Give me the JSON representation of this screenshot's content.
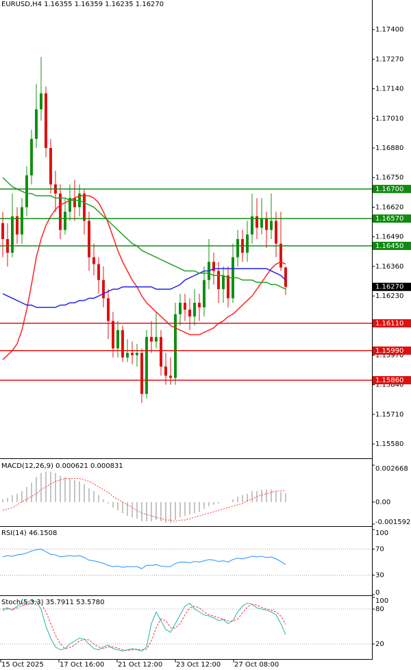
{
  "chart_data": [
    {
      "type": "candlestick",
      "title": "EURUSD,H4  1.16355 1.16359 1.16235 1.16270",
      "up_color": "#109010",
      "down_color": "#e01010",
      "ylim": [
        1.1552,
        1.1753
      ],
      "yticks": [
        {
          "value": 1.174,
          "label": "1.17400"
        },
        {
          "value": 1.1727,
          "label": "1.17270"
        },
        {
          "value": 1.1714,
          "label": "1.17140"
        },
        {
          "value": 1.1701,
          "label": "1.17010"
        },
        {
          "value": 1.1688,
          "label": "1.16880"
        },
        {
          "value": 1.1675,
          "label": "1.16750"
        },
        {
          "value": 1.1662,
          "label": "1.16620"
        },
        {
          "value": 1.1649,
          "label": "1.16490"
        },
        {
          "value": 1.1636,
          "label": "1.16360"
        },
        {
          "value": 1.1623,
          "label": "1.16230"
        },
        {
          "value": 1.161,
          "label": "1.16100"
        },
        {
          "value": 1.1597,
          "label": "1.15970"
        },
        {
          "value": 1.1584,
          "label": "1.15840"
        },
        {
          "value": 1.1571,
          "label": "1.15710"
        },
        {
          "value": 1.1558,
          "label": "1.15580"
        }
      ],
      "open": [
        1.1655,
        1.1648,
        1.1642,
        1.1658,
        1.165,
        1.1662,
        1.1676,
        1.1692,
        1.1705,
        1.1712,
        1.1688,
        1.1672,
        1.1668,
        1.1652,
        1.166,
        1.1666,
        1.1662,
        1.1668,
        1.1656,
        1.164,
        1.1637,
        1.163,
        1.1622,
        1.1612,
        1.16,
        1.1608,
        1.1596,
        1.1598,
        1.1597,
        1.1598,
        1.158,
        1.1605,
        1.1603,
        1.1605,
        1.1592,
        1.1588,
        1.1587,
        1.1615,
        1.162,
        1.1617,
        1.1614,
        1.162,
        1.1618,
        1.163,
        1.1638,
        1.1634,
        1.1626,
        1.1632,
        1.1622,
        1.164,
        1.1648,
        1.1642,
        1.165,
        1.1658,
        1.1653,
        1.1657,
        1.1652,
        1.1656,
        1.1646,
        1.16355
      ],
      "high": [
        1.166,
        1.1655,
        1.1668,
        1.1662,
        1.1666,
        1.168,
        1.1696,
        1.1716,
        1.1728,
        1.1715,
        1.1692,
        1.1678,
        1.1672,
        1.1666,
        1.1672,
        1.1674,
        1.1672,
        1.167,
        1.166,
        1.1646,
        1.164,
        1.1636,
        1.1626,
        1.1616,
        1.1612,
        1.161,
        1.1604,
        1.1603,
        1.1602,
        1.16,
        1.1608,
        1.1612,
        1.1616,
        1.1608,
        1.1598,
        1.1596,
        1.162,
        1.1624,
        1.1624,
        1.1622,
        1.1626,
        1.1624,
        1.1636,
        1.1648,
        1.1642,
        1.1638,
        1.1636,
        1.1636,
        1.1646,
        1.1652,
        1.1652,
        1.1656,
        1.1668,
        1.1666,
        1.1666,
        1.166,
        1.1668,
        1.166,
        1.166,
        1.16359
      ],
      "low": [
        1.164,
        1.1636,
        1.164,
        1.1646,
        1.1646,
        1.1658,
        1.1672,
        1.1688,
        1.17,
        1.1684,
        1.1668,
        1.166,
        1.1648,
        1.165,
        1.1656,
        1.1656,
        1.1658,
        1.165,
        1.1634,
        1.1632,
        1.1624,
        1.1618,
        1.1604,
        1.1596,
        1.1596,
        1.1594,
        1.1594,
        1.1593,
        1.1592,
        1.1576,
        1.1578,
        1.1598,
        1.16,
        1.1588,
        1.1584,
        1.1584,
        1.1584,
        1.161,
        1.1612,
        1.1608,
        1.161,
        1.1612,
        1.1614,
        1.1626,
        1.1628,
        1.162,
        1.162,
        1.1618,
        1.162,
        1.1636,
        1.1638,
        1.1638,
        1.1646,
        1.1648,
        1.165,
        1.1644,
        1.1648,
        1.164,
        1.1634,
        1.16235
      ],
      "close": [
        1.1648,
        1.1642,
        1.1658,
        1.165,
        1.1662,
        1.1676,
        1.1692,
        1.1705,
        1.1712,
        1.1688,
        1.1672,
        1.1668,
        1.1652,
        1.166,
        1.1666,
        1.1662,
        1.1668,
        1.1656,
        1.164,
        1.1637,
        1.163,
        1.1622,
        1.1612,
        1.16,
        1.1608,
        1.1596,
        1.1598,
        1.1597,
        1.1598,
        1.158,
        1.1605,
        1.1603,
        1.1605,
        1.1592,
        1.1588,
        1.1587,
        1.1615,
        1.162,
        1.1617,
        1.1614,
        1.162,
        1.1618,
        1.163,
        1.1638,
        1.1634,
        1.1626,
        1.1632,
        1.1622,
        1.164,
        1.1648,
        1.1642,
        1.165,
        1.1658,
        1.1653,
        1.1657,
        1.1652,
        1.1656,
        1.1646,
        1.16355,
        1.1627
      ],
      "overlays": [
        {
          "color": "#ff2020",
          "values": [
            1.1595,
            1.1597,
            1.1599,
            1.1602,
            1.1608,
            1.1617,
            1.1628,
            1.164,
            1.1648,
            1.1654,
            1.1658,
            1.1661,
            1.1663,
            1.1664,
            1.1665,
            1.1666,
            1.1667,
            1.1667,
            1.1667,
            1.1666,
            1.1664,
            1.166,
            1.1655,
            1.1649,
            1.1643,
            1.1638,
            1.1634,
            1.163,
            1.1627,
            1.1623,
            1.162,
            1.1618,
            1.1616,
            1.1614,
            1.1612,
            1.161,
            1.1609,
            1.1608,
            1.1607,
            1.1606,
            1.1606,
            1.1606,
            1.1607,
            1.1608,
            1.1609,
            1.1611,
            1.1612,
            1.1614,
            1.1615,
            1.1617,
            1.1619,
            1.1621,
            1.1623,
            1.1626,
            1.1629,
            1.1632,
            1.1635,
            1.1637,
            1.1638,
            1.1637
          ]
        },
        {
          "color": "#2222ee",
          "values": [
            1.1624,
            1.1623,
            1.1622,
            1.1621,
            1.162,
            1.1619,
            1.1619,
            1.1618,
            1.1618,
            1.1618,
            1.1618,
            1.1618,
            1.1619,
            1.1619,
            1.162,
            1.162,
            1.1621,
            1.1621,
            1.1622,
            1.1622,
            1.1623,
            1.1624,
            1.1625,
            1.1626,
            1.1626,
            1.1627,
            1.1627,
            1.1627,
            1.1627,
            1.1627,
            1.1627,
            1.1627,
            1.1626,
            1.1626,
            1.1626,
            1.1626,
            1.1627,
            1.1628,
            1.163,
            1.1631,
            1.1632,
            1.1633,
            1.1634,
            1.1634,
            1.1635,
            1.1635,
            1.1635,
            1.1635,
            1.1635,
            1.1635,
            1.1635,
            1.1635,
            1.1635,
            1.1635,
            1.1635,
            1.1635,
            1.1634,
            1.1633,
            1.1632,
            1.163
          ]
        },
        {
          "color": "#22a022",
          "values": [
            1.1675,
            1.1673,
            1.1671,
            1.167,
            1.1669,
            1.1668,
            1.1668,
            1.1667,
            1.1667,
            1.1667,
            1.1667,
            1.1666,
            1.1666,
            1.1666,
            1.1665,
            1.1665,
            1.1665,
            1.1664,
            1.1663,
            1.1662,
            1.166,
            1.1658,
            1.1656,
            1.1654,
            1.1652,
            1.165,
            1.1648,
            1.1646,
            1.1645,
            1.1643,
            1.1642,
            1.1641,
            1.164,
            1.1639,
            1.1638,
            1.1637,
            1.1636,
            1.1635,
            1.1634,
            1.1634,
            1.1634,
            1.1633,
            1.1633,
            1.1633,
            1.1632,
            1.1632,
            1.1632,
            1.1631,
            1.1631,
            1.1631,
            1.163,
            1.163,
            1.163,
            1.1629,
            1.1629,
            1.1629,
            1.1628,
            1.1628,
            1.1627,
            1.1626
          ]
        }
      ],
      "levels": [
        {
          "value": 1.167,
          "label": "1.16700",
          "color": "#108a10"
        },
        {
          "value": 1.1657,
          "label": "1.16570",
          "color": "#108a10"
        },
        {
          "value": 1.1645,
          "label": "1.16450",
          "color": "#108a10"
        },
        {
          "value": 1.1611,
          "label": "1.16110",
          "color": "#e01010"
        },
        {
          "value": 1.1599,
          "label": "1.15990",
          "color": "#e01010"
        },
        {
          "value": 1.1586,
          "label": "1.15860",
          "color": "#e01010"
        }
      ],
      "last_price": {
        "value": 1.1627,
        "label": "1.16270"
      },
      "time_labels": [
        "15 Oct 2025",
        "17 Oct 16:00",
        "21 Oct 12:00",
        "23 Oct 12:00",
        "27 Oct 08:00"
      ]
    },
    {
      "type": "macd",
      "title": "MACD(12,26,9) 0.000621 0.000831",
      "ylim": [
        -0.001592,
        0.002668
      ],
      "yticks": [
        0.002668,
        {
          "value": 0,
          "label": "0.00"
        },
        -0.001592
      ],
      "histogram_color": "#b0b0b0",
      "signal_color": "#ff3030",
      "histogram": [
        0.0002,
        0.0003,
        0.0005,
        0.0006,
        0.0008,
        0.0011,
        0.0014,
        0.0018,
        0.0021,
        0.0022,
        0.0022,
        0.0021,
        0.0019,
        0.0018,
        0.0017,
        0.0016,
        0.0015,
        0.0013,
        0.001,
        0.0008,
        0.0005,
        0.0002,
        -0.0001,
        -0.0004,
        -0.0006,
        -0.0008,
        -0.001,
        -0.0011,
        -0.0012,
        -0.0014,
        -0.0014,
        -0.0014,
        -0.0013,
        -0.0014,
        -0.0015,
        -0.0015,
        -0.0013,
        -0.0011,
        -0.001,
        -0.0009,
        -0.0008,
        -0.0007,
        -0.0005,
        -0.0003,
        -0.0002,
        -0.0001,
        0.0,
        0.0,
        0.0002,
        0.0004,
        0.0005,
        0.0006,
        0.0008,
        0.0008,
        0.0009,
        0.0009,
        0.0009,
        0.0008,
        0.0007,
        0.000621
      ],
      "signal": [
        -0.0006,
        -0.0005,
        -0.0004,
        -0.0002,
        0.0,
        0.0002,
        0.0004,
        0.0006,
        0.0009,
        0.0011,
        0.0013,
        0.0015,
        0.0016,
        0.0017,
        0.0017,
        0.0017,
        0.0017,
        0.0016,
        0.0015,
        0.0013,
        0.0011,
        0.0009,
        0.0007,
        0.0004,
        0.0002,
        0.0,
        -0.0002,
        -0.0004,
        -0.0006,
        -0.0008,
        -0.0009,
        -0.001,
        -0.0011,
        -0.0012,
        -0.0013,
        -0.0013,
        -0.0014,
        -0.0013,
        -0.0013,
        -0.0012,
        -0.0011,
        -0.001,
        -0.0009,
        -0.0008,
        -0.0007,
        -0.0006,
        -0.0005,
        -0.0004,
        -0.0003,
        -0.0002,
        -0.0001,
        0.0001,
        0.0002,
        0.0004,
        0.0005,
        0.0006,
        0.0007,
        0.0008,
        0.0008,
        0.000831
      ]
    },
    {
      "type": "line",
      "title": "RSI(14) 46.1508",
      "ylim": [
        0,
        100
      ],
      "yticks": [
        100,
        70,
        30,
        0
      ],
      "series": [
        {
          "color": "#1e90ff",
          "dash": false,
          "values": [
            58,
            60,
            59,
            61,
            62,
            64,
            67,
            69,
            70,
            66,
            62,
            61,
            58,
            59,
            60,
            59,
            60,
            57,
            53,
            52,
            50,
            48,
            45,
            43,
            44,
            42,
            43,
            43,
            43,
            40,
            45,
            45,
            46,
            44,
            43,
            43,
            48,
            50,
            50,
            49,
            51,
            50,
            52,
            54,
            53,
            51,
            52,
            50,
            54,
            56,
            55,
            57,
            59,
            58,
            59,
            57,
            58,
            55,
            51,
            46.1508
          ]
        }
      ]
    },
    {
      "type": "line",
      "title": "Stoch(5,3,3) 35.7911 53.5780",
      "ylim": [
        0,
        100
      ],
      "yticks": [
        100,
        80,
        20
      ],
      "series": [
        {
          "color": "#20b2aa",
          "dash": false,
          "values": [
            80,
            82,
            78,
            85,
            90,
            92,
            95,
            93,
            80,
            50,
            30,
            15,
            10,
            12,
            20,
            25,
            30,
            28,
            20,
            12,
            10,
            15,
            18,
            12,
            10,
            8,
            10,
            12,
            10,
            8,
            15,
            55,
            75,
            60,
            45,
            40,
            55,
            70,
            85,
            90,
            80,
            75,
            70,
            68,
            65,
            60,
            62,
            55,
            60,
            75,
            85,
            90,
            88,
            82,
            80,
            78,
            75,
            70,
            55,
            35.7911
          ]
        },
        {
          "color": "#ff3030",
          "dash": true,
          "values": [
            78,
            80,
            80,
            82,
            85,
            88,
            92,
            93,
            90,
            75,
            55,
            35,
            20,
            12,
            14,
            18,
            25,
            28,
            27,
            20,
            15,
            12,
            15,
            15,
            13,
            10,
            9,
            10,
            11,
            10,
            11,
            25,
            48,
            63,
            60,
            48,
            47,
            55,
            70,
            82,
            85,
            82,
            75,
            70,
            68,
            65,
            62,
            60,
            59,
            63,
            73,
            83,
            88,
            87,
            83,
            80,
            78,
            75,
            68,
            53.578
          ]
        }
      ]
    }
  ]
}
